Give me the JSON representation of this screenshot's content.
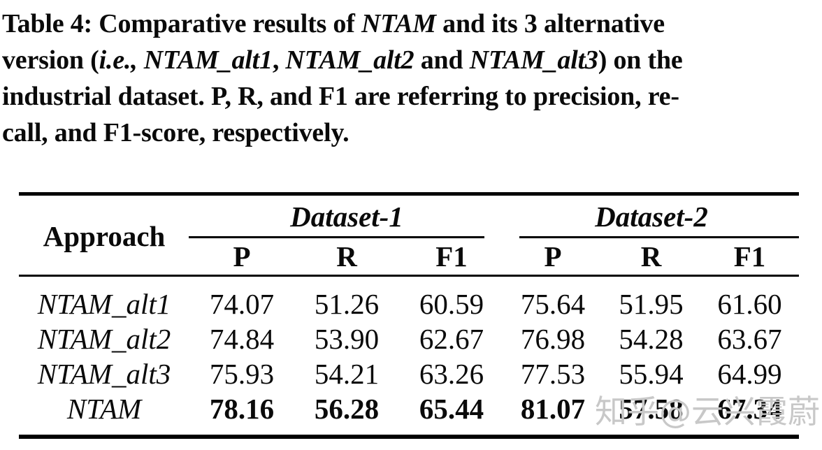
{
  "caption": {
    "lines": [
      {
        "segs": [
          {
            "t": "Table 4: Comparative results of "
          },
          {
            "t": "NTAM"
          },
          {
            "t": " and its 3 alternative"
          }
        ]
      },
      {
        "segs": [
          {
            "t": "version ("
          },
          {
            "t": "i.e., NTAM_alt1"
          },
          {
            "t": ", "
          },
          {
            "t": "NTAM_alt2"
          },
          {
            "t": " and "
          },
          {
            "t": "NTAM_alt3"
          },
          {
            "t": ") on the"
          }
        ]
      },
      {
        "segs": [
          {
            "t": "industrial dataset. P, R, and F1 are referring to precision, re-"
          }
        ]
      },
      {
        "segs": [
          {
            "t": "call, and F1-score, respectively."
          }
        ]
      }
    ]
  },
  "table": {
    "approach_header": "Approach",
    "groups": [
      {
        "label": "Dataset-1",
        "cols": [
          "P",
          "R",
          "F1"
        ]
      },
      {
        "label": "Dataset-2",
        "cols": [
          "P",
          "R",
          "F1"
        ]
      }
    ],
    "rows": [
      {
        "approach": "NTAM_alt1",
        "values": [
          "74.07",
          "51.26",
          "60.59",
          "75.64",
          "51.95",
          "61.60"
        ],
        "bold": false
      },
      {
        "approach": "NTAM_alt2",
        "values": [
          "74.84",
          "53.90",
          "62.67",
          "76.98",
          "54.28",
          "63.67"
        ],
        "bold": false
      },
      {
        "approach": "NTAM_alt3",
        "values": [
          "75.93",
          "54.21",
          "63.26",
          "77.53",
          "55.94",
          "64.99"
        ],
        "bold": false
      },
      {
        "approach": "NTAM",
        "values": [
          "78.16",
          "56.28",
          "65.44",
          "81.07",
          "57.58",
          "67.34"
        ],
        "bold": true
      }
    ]
  },
  "watermark": {
    "text": "知乎@云兴霞蔚"
  },
  "colors": {
    "background": "#ffffff",
    "text": "#0a0a0a",
    "rule": "#000000",
    "watermark": "#c8c8c8"
  }
}
